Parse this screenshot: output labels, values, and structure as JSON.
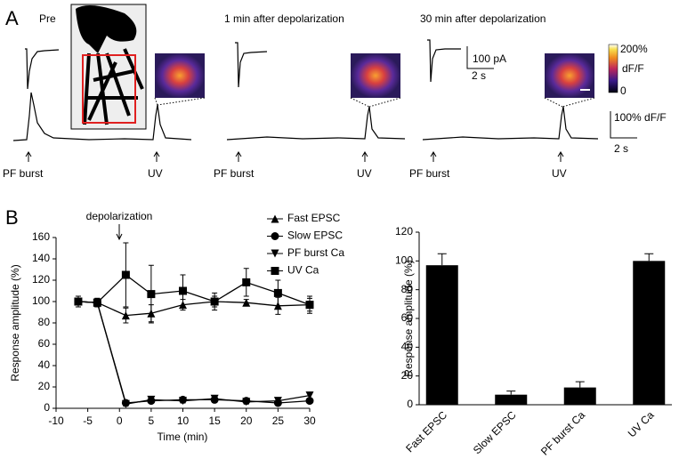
{
  "panel_a": {
    "label": "A",
    "conditions": [
      "Pre",
      "1 min after depolarization",
      "30 min after depolarization"
    ],
    "stim_labels": [
      "PF burst",
      "UV",
      "PF burst",
      "UV",
      "PF burst",
      "UV"
    ],
    "current_scale": "100 pA",
    "current_time_scale": "2 s",
    "colorbar": {
      "max": "200%",
      "label": "dF/F",
      "min": "0"
    },
    "ca_scale": "100% dF/F",
    "ca_time_scale": "2 s"
  },
  "chart_data": [
    {
      "type": "line",
      "panel_label": "B",
      "annotation": "depolarization",
      "xlabel": "Time (min)",
      "ylabel": "Response amplitude (%)",
      "x": [
        -6.5,
        -3.5,
        1,
        5,
        10,
        15,
        20,
        25,
        30
      ],
      "xlim": [
        -10,
        30
      ],
      "xticks": [
        -10,
        -5,
        0,
        5,
        10,
        15,
        20,
        25,
        30
      ],
      "ylim": [
        0,
        160
      ],
      "yticks": [
        0,
        20,
        40,
        60,
        80,
        100,
        120,
        140,
        160
      ],
      "series": [
        {
          "name": "Fast EPSC",
          "color": "#000000",
          "marker": "triangle",
          "values": [
            100,
            99,
            87,
            89,
            97,
            100,
            99,
            96,
            97
          ],
          "errors": [
            5,
            4,
            7,
            8,
            5,
            5,
            3,
            8,
            6
          ]
        },
        {
          "name": "Slow EPSC",
          "color": "#000000",
          "marker": "circle",
          "values": [
            100,
            99,
            5,
            7,
            8,
            8,
            7,
            5,
            7
          ],
          "errors": [
            3,
            3,
            2,
            2,
            2,
            2,
            2,
            2,
            2
          ]
        },
        {
          "name": "PF burst Ca",
          "color": "#000000",
          "marker": "triangle-down",
          "values": [
            100,
            99,
            4,
            8,
            7,
            9,
            6,
            7,
            12
          ],
          "errors": [
            3,
            3,
            2,
            2,
            2,
            2,
            2,
            2,
            3
          ]
        },
        {
          "name": "UV Ca",
          "color": "#000000",
          "marker": "square",
          "values": [
            100,
            99,
            125,
            107,
            110,
            100,
            118,
            108,
            97
          ],
          "errors": [
            5,
            4,
            30,
            27,
            15,
            8,
            13,
            12,
            8
          ]
        }
      ]
    },
    {
      "type": "bar",
      "ylabel": "Response amplitude (%)",
      "categories": [
        "Fast EPSC",
        "Slow EPSC",
        "PF burst Ca",
        "UV Ca"
      ],
      "values": [
        97,
        7,
        12,
        100
      ],
      "errors": [
        8,
        2.5,
        4,
        5
      ],
      "color": "#000000",
      "ylim": [
        0,
        120
      ],
      "yticks": [
        0,
        20,
        40,
        60,
        80,
        100,
        120
      ]
    }
  ]
}
